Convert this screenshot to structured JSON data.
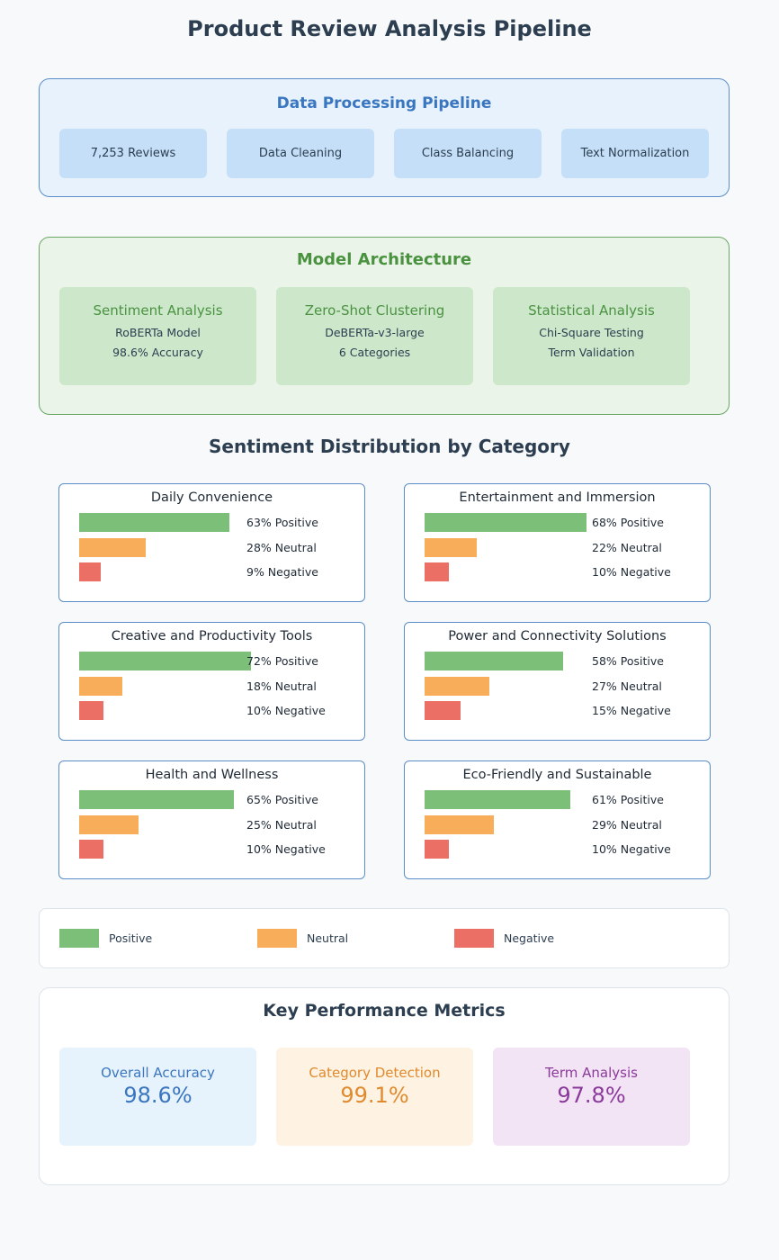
{
  "title": "Product Review Analysis Pipeline",
  "pipeline": {
    "title": "Data Processing Pipeline",
    "steps": [
      "7,253 Reviews",
      "Data Cleaning",
      "Class Balancing",
      "Text Normalization"
    ]
  },
  "model": {
    "title": "Model Architecture",
    "cards": [
      {
        "name": "Sentiment Analysis",
        "lines": [
          "RoBERTa Model",
          "98.6% Accuracy"
        ]
      },
      {
        "name": "Zero-Shot Clustering",
        "lines": [
          "DeBERTa-v3-large",
          "6 Categories"
        ]
      },
      {
        "name": "Statistical Analysis",
        "lines": [
          "Chi-Square Testing",
          "Term Validation"
        ]
      }
    ]
  },
  "sentiment": {
    "title": "Sentiment Distribution by Category",
    "colors": {
      "positive": "#7bbf78",
      "neutral": "#f7ad5a",
      "negative": "#ec6f66"
    },
    "categories": [
      {
        "name": "Daily Convenience",
        "positive": 63,
        "neutral": 28,
        "negative": 9,
        "labels": [
          "63% Positive",
          "28% Neutral",
          "9% Negative"
        ]
      },
      {
        "name": "Entertainment and Immersion",
        "positive": 68,
        "neutral": 22,
        "negative": 10,
        "labels": [
          "68% Positive",
          "22% Neutral",
          "10% Negative"
        ]
      },
      {
        "name": "Creative and Productivity Tools",
        "positive": 72,
        "neutral": 18,
        "negative": 10,
        "labels": [
          "72% Positive",
          "18% Neutral",
          "10% Negative"
        ]
      },
      {
        "name": "Power and Connectivity Solutions",
        "positive": 58,
        "neutral": 27,
        "negative": 15,
        "labels": [
          "58% Positive",
          "27% Neutral",
          "15% Negative"
        ]
      },
      {
        "name": "Health and Wellness",
        "positive": 65,
        "neutral": 25,
        "negative": 10,
        "labels": [
          "65% Positive",
          "25% Neutral",
          "10% Negative"
        ]
      },
      {
        "name": "Eco-Friendly and Sustainable",
        "positive": 61,
        "neutral": 29,
        "negative": 10,
        "labels": [
          "61% Positive",
          "29% Neutral",
          "10% Negative"
        ]
      }
    ]
  },
  "legend": [
    "Positive",
    "Neutral",
    "Negative"
  ],
  "metrics": {
    "title": "Key Performance Metrics",
    "items": [
      {
        "label": "Overall Accuracy",
        "value": "98.6%",
        "bg": "#e6f2fc",
        "fg": "#3a76c0"
      },
      {
        "label": "Category Detection",
        "value": "99.1%",
        "bg": "#fef2e2",
        "fg": "#e08a2e"
      },
      {
        "label": "Term Analysis",
        "value": "97.8%",
        "bg": "#f2e4f4",
        "fg": "#8a3a9a"
      }
    ]
  }
}
